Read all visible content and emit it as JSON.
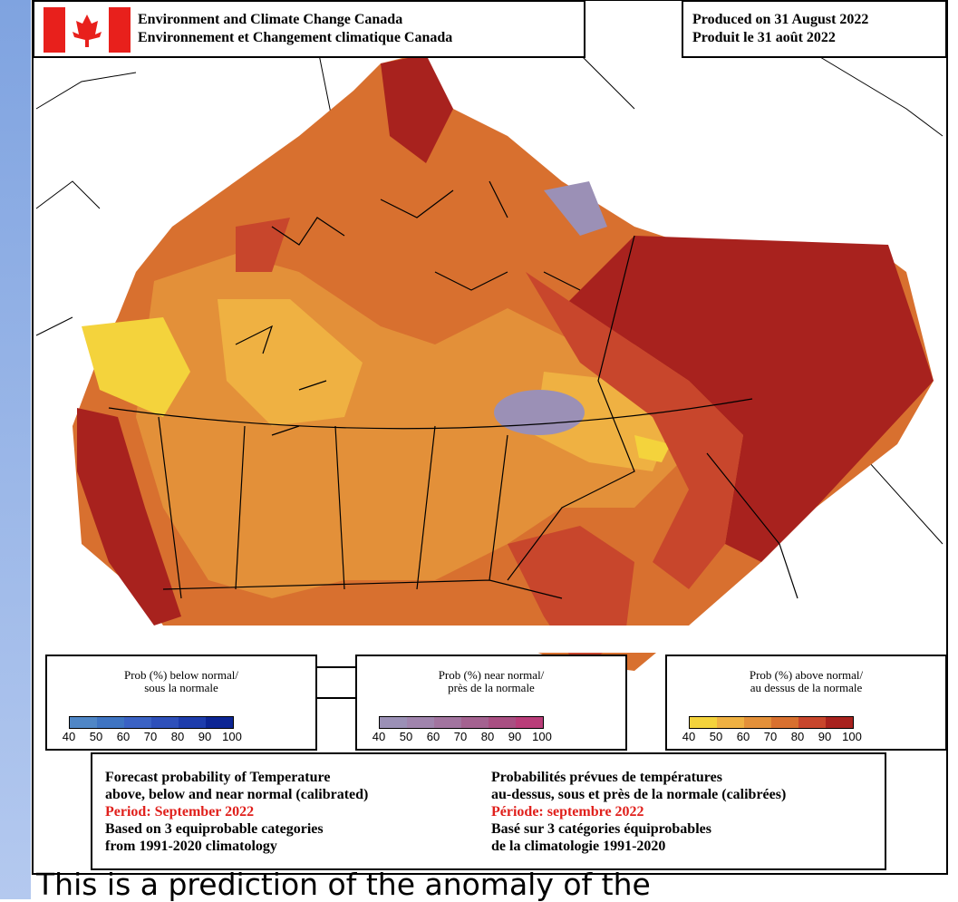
{
  "header": {
    "agency": [
      "Environment and Climate Change Canada",
      "Environnement et Changement climatique Canada"
    ],
    "produced": [
      "Produced on 31 August 2022",
      "Produit le 31 août 2022"
    ]
  },
  "legends": [
    {
      "title": [
        "Prob (%) below normal/",
        "sous la normale"
      ],
      "colors": [
        "#4f86c6",
        "#3e74c2",
        "#3a62c4",
        "#2e50ba",
        "#1d3cac",
        "#0c2594"
      ],
      "ticks": [
        40,
        50,
        60,
        70,
        80,
        90,
        100
      ]
    },
    {
      "title": [
        "Prob (%) near normal/",
        "près de la normale"
      ],
      "colors": [
        "#9b90b6",
        "#a084ad",
        "#a2749f",
        "#a46290",
        "#a94f82",
        "#b93d79"
      ],
      "ticks": [
        40,
        50,
        60,
        70,
        80,
        90,
        100
      ]
    },
    {
      "title": [
        "Prob (%) above normal/",
        "au dessus de la normale"
      ],
      "colors": [
        "#f4d33c",
        "#efb142",
        "#e39039",
        "#d8702f",
        "#c8462c",
        "#a8221e"
      ],
      "ticks": [
        40,
        50,
        60,
        70,
        80,
        90,
        100
      ]
    }
  ],
  "info": {
    "left": [
      "Forecast probability of Temperature",
      "above, below and near normal (calibrated)",
      "Period: September 2022",
      "Based on 3 equiprobable categories",
      " from 1991-2020 climatology"
    ],
    "right": [
      "Probabilités prévues de températures",
      "au-dessus, sous et près de la normale (calibrées)",
      "Période: septembre 2022",
      "Basé sur 3 catégories équiprobables",
      "de la climatologie 1991-2020"
    ]
  },
  "caption": "This is a prediction of the anomaly of the"
}
